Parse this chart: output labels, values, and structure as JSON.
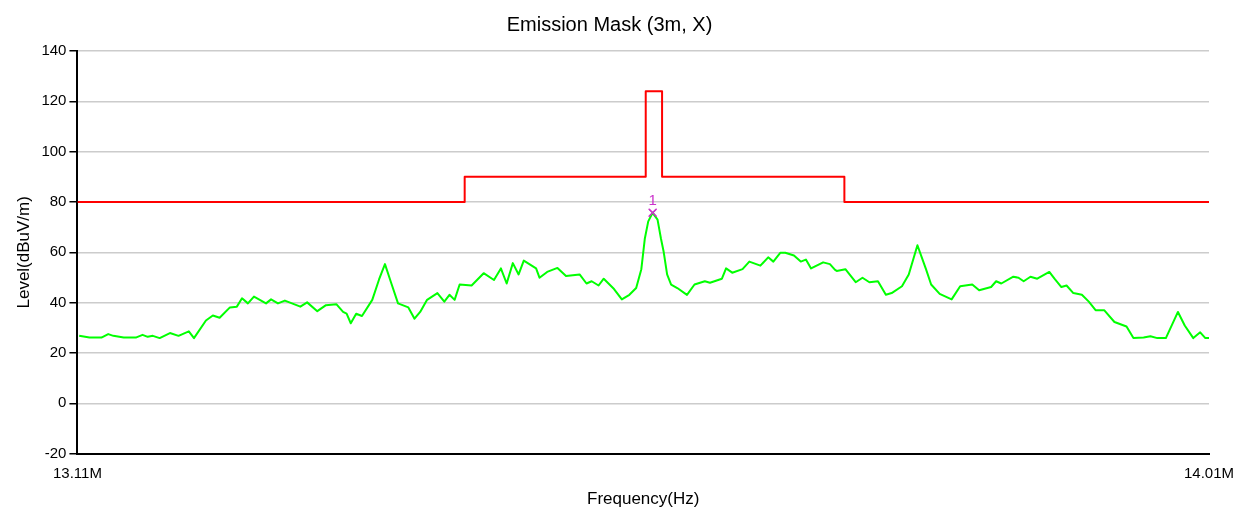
{
  "chart_data": {
    "type": "line",
    "title": "Emission Mask (3m, X)",
    "xlabel": "Frequency(Hz)",
    "ylabel": "Level(dBuV/m)",
    "xlim": [
      13110000,
      14010000
    ],
    "xticks": [
      {
        "value": 13110000,
        "label": "13.11M"
      },
      {
        "value": 14010000,
        "label": "14.01M"
      }
    ],
    "ylim": [
      -20,
      140
    ],
    "yticks": [
      -20,
      0,
      20,
      40,
      60,
      80,
      100,
      120,
      140
    ],
    "grid": "y",
    "legend": false,
    "marker": "none",
    "line_style": "solid",
    "annotations": [
      {
        "text": "1",
        "x": 13567500,
        "y": 75.7
      }
    ],
    "series": [
      {
        "color": "#ff0000",
        "x": [
          13110000,
          13418000,
          13418000,
          13562000,
          13562000,
          13575000,
          13575000,
          13720000,
          13720000,
          14010000
        ],
        "values": [
          80,
          80,
          90,
          90,
          124,
          124,
          90,
          90,
          80,
          80
        ]
      },
      {
        "color": "#00ff00",
        "x": [
          13111400,
          13119600,
          13129100,
          13134500,
          13138600,
          13146800,
          13156400,
          13161800,
          13165900,
          13170000,
          13175400,
          13183600,
          13190400,
          13198600,
          13202700,
          13212200,
          13217700,
          13223100,
          13231300,
          13236800,
          13240900,
          13245600,
          13250400,
          13260000,
          13264000,
          13269500,
          13275000,
          13287300,
          13292700,
          13300800,
          13307700,
          13315900,
          13321300,
          13324100,
          13327400,
          13331700,
          13336300,
          13344500,
          13349900,
          13354600,
          13359500,
          13365000,
          13373200,
          13378100,
          13382600,
          13388100,
          13396300,
          13401800,
          13405900,
          13410000,
          13414000,
          13423500,
          13433100,
          13441300,
          13446800,
          13451400,
          13456300,
          13460900,
          13465000,
          13474800,
          13477500,
          13483600,
          13491800,
          13498600,
          13509400,
          13514900,
          13519000,
          13524500,
          13528600,
          13536800,
          13543000,
          13549000,
          13554400,
          13558500,
          13561300,
          13564000,
          13567500,
          13571400,
          13574100,
          13576300,
          13579000,
          13582200,
          13587100,
          13594800,
          13600800,
          13609000,
          13613100,
          13622600,
          13625900,
          13630800,
          13639000,
          13644400,
          13653200,
          13659400,
          13663500,
          13669000,
          13673000,
          13679900,
          13685300,
          13689400,
          13693500,
          13703100,
          13708500,
          13712600,
          13713900,
          13720800,
          13729000,
          13734400,
          13739900,
          13746700,
          13753000,
          13757600,
          13765800,
          13771200,
          13778100,
          13784900,
          13789000,
          13795800,
          13805300,
          13812100,
          13821700,
          13827200,
          13836700,
          13840700,
          13844800,
          13854400,
          13858500,
          13862600,
          13868000,
          13873400,
          13883000,
          13887100,
          13892600,
          13896700,
          13902100,
          13908900,
          13914400,
          13919800,
          13926600,
          13934800,
          13944400,
          13949900,
          13958000,
          13963400,
          13968900,
          13975700,
          13985300,
          13990700,
          13997500,
          14003000,
          14007100,
          14010000
        ],
        "values": [
          26.8,
          26.1,
          26.1,
          27.5,
          26.8,
          26.1,
          26.1,
          27.2,
          26.4,
          26.8,
          25.9,
          27.9,
          26.8,
          28.6,
          25.9,
          32.9,
          34.9,
          34.0,
          38.1,
          38.4,
          41.7,
          39.7,
          42.4,
          39.7,
          41.3,
          39.7,
          40.8,
          38.4,
          40.1,
          36.6,
          39.0,
          39.4,
          36.3,
          35.6,
          31.8,
          35.6,
          34.7,
          41.1,
          49.2,
          55.3,
          47.9,
          39.7,
          38.1,
          33.6,
          36.3,
          41.1,
          43.8,
          40.4,
          43.1,
          41.1,
          47.2,
          46.8,
          51.7,
          49.0,
          53.6,
          47.6,
          55.7,
          51.2,
          56.7,
          53.6,
          49.9,
          52.2,
          53.8,
          50.6,
          51.2,
          47.6,
          48.5,
          46.8,
          49.5,
          45.4,
          41.3,
          43.1,
          45.8,
          53.3,
          65.5,
          72.3,
          75.7,
          73.0,
          65.5,
          60.1,
          51.2,
          47.2,
          45.8,
          43.1,
          47.2,
          48.5,
          47.9,
          49.5,
          53.6,
          51.9,
          53.3,
          56.3,
          54.7,
          58.0,
          56.3,
          59.8,
          59.8,
          58.7,
          56.3,
          57.1,
          53.6,
          56.0,
          55.3,
          53.0,
          52.6,
          53.3,
          48.1,
          49.9,
          48.1,
          48.5,
          43.1,
          43.8,
          46.5,
          51.2,
          62.8,
          53.3,
          47.2,
          43.5,
          41.3,
          46.5,
          47.2,
          44.9,
          46.2,
          48.5,
          47.6,
          50.3,
          49.9,
          48.5,
          50.3,
          49.5,
          52.2,
          49.5,
          46.2,
          46.8,
          43.8,
          43.1,
          40.4,
          37.0,
          37.0,
          32.3,
          30.5,
          25.9,
          26.1,
          26.6,
          25.9,
          25.9,
          36.3,
          30.9,
          25.9,
          28.2,
          25.9,
          25.9
        ]
      },
      {
        "type": "scatter",
        "color": "#cc33cc",
        "marker": "cross",
        "x": [
          13567500
        ],
        "values": [
          75.7
        ]
      }
    ]
  }
}
